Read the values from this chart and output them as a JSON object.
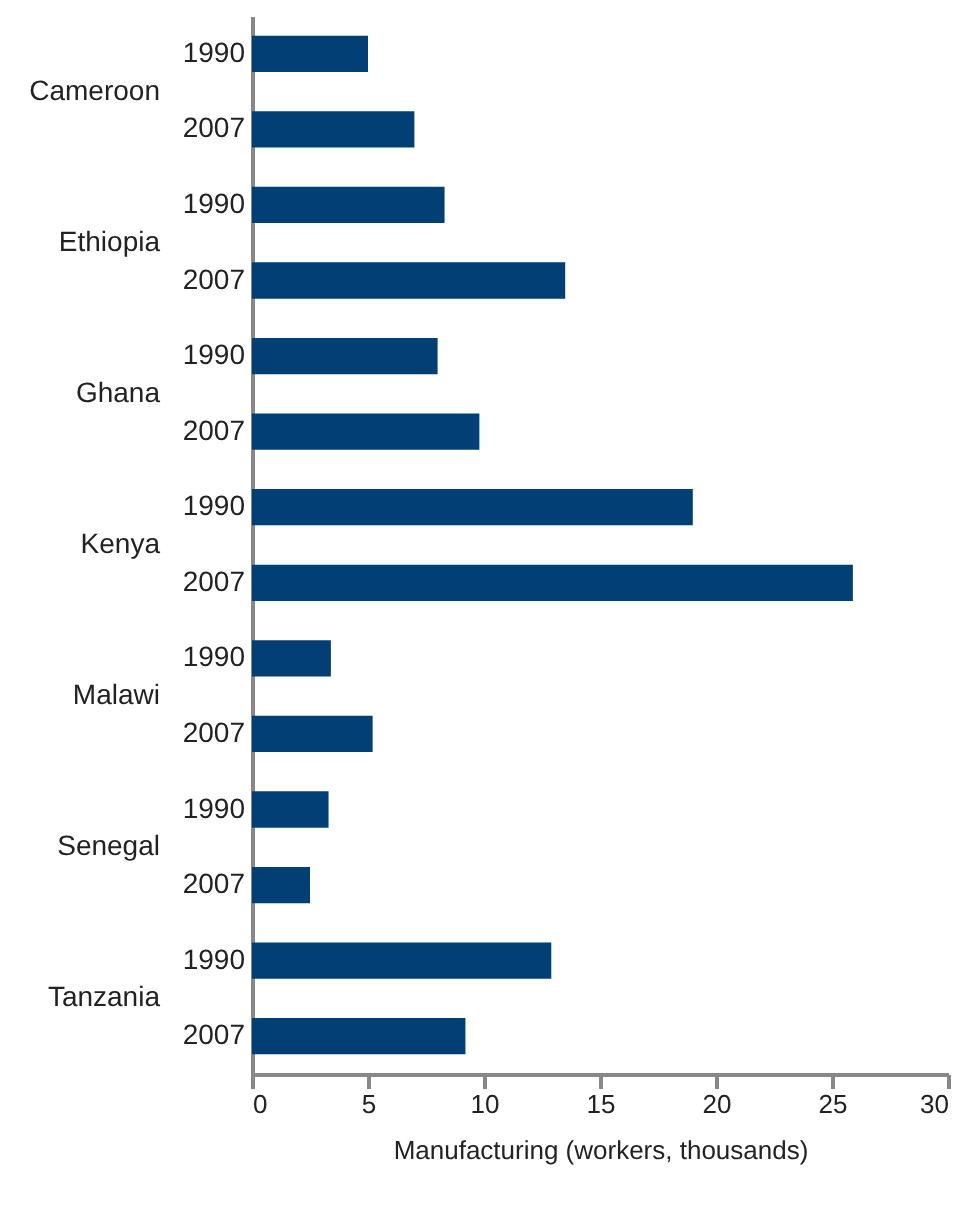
{
  "chart_data": {
    "type": "bar",
    "orientation": "horizontal",
    "categories": [
      "1990",
      "2007",
      "1990",
      "2007",
      "1990",
      "2007",
      "1990",
      "2007",
      "1990",
      "2007",
      "1990",
      "2007",
      "1990",
      "2007"
    ],
    "values": [
      5.0,
      7.0,
      8.3,
      13.5,
      8.0,
      9.8,
      19.0,
      25.9,
      3.4,
      5.2,
      3.3,
      2.5,
      12.9,
      9.2
    ],
    "color": "#023f74",
    "xlim": [
      0,
      30
    ],
    "xticks": [
      0,
      5,
      10,
      15,
      20,
      25,
      30
    ],
    "xlabel": "Manufacturing (workers, thousands)",
    "annotations": [
      "Cameroon",
      "Ethiopia",
      "Ghana",
      "Kenya",
      "Malawi",
      "Senegal",
      "Tanzania"
    ],
    "grid": false
  }
}
